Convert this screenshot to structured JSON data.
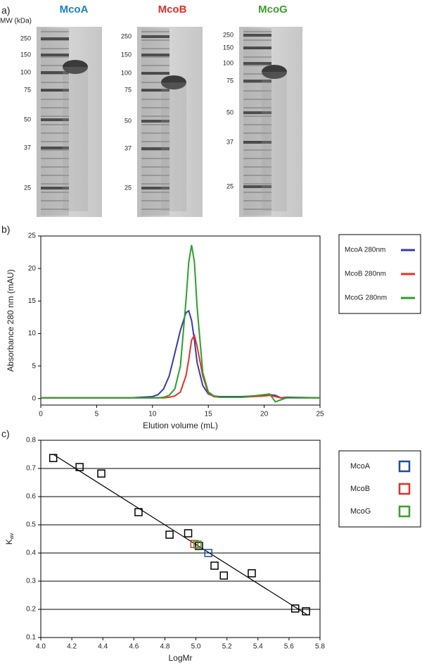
{
  "gels": {
    "label": "a)",
    "mw_axis": "MW (kDa)",
    "panels": [
      {
        "title": "McoA",
        "color": "#1b7fc4",
        "markers": [
          "250",
          "150",
          "100",
          "75",
          "50",
          "37",
          "25"
        ]
      },
      {
        "title": "McoB",
        "color": "#e0302a",
        "markers": [
          "250",
          "150",
          "100",
          "75",
          "50",
          "37",
          "25"
        ]
      },
      {
        "title": "McoG",
        "color": "#3aa02c",
        "markers": [
          "250",
          "150",
          "100",
          "75",
          "50",
          "37",
          "25"
        ]
      }
    ]
  },
  "chart_data": [
    {
      "type": "line",
      "label": "b)",
      "x_label": "Elution volume (mL)",
      "y_label": "Absorbance 280 nm (mAU)",
      "x": [
        0,
        2,
        4,
        6,
        8,
        10,
        10.5,
        11,
        11.5,
        12,
        12.5,
        13,
        13.25,
        13.5,
        13.75,
        14,
        14.5,
        15,
        15.5,
        16,
        18,
        20,
        20.5,
        21,
        21.5,
        22,
        25
      ],
      "series": [
        {
          "name": "McoA 280nm",
          "color": "#3a3aae",
          "values": [
            0.1,
            0.1,
            0.1,
            0.1,
            0.1,
            0.3,
            0.6,
            1.5,
            3.5,
            7,
            10.5,
            13.2,
            13.5,
            12,
            9,
            5.5,
            2,
            0.7,
            0.4,
            0.3,
            0.3,
            0.5,
            0.6,
            0.5,
            0.1,
            0.2,
            0.1
          ]
        },
        {
          "name": "McoB 280nm",
          "color": "#e8302a",
          "values": [
            0.1,
            0.1,
            0.1,
            0.1,
            0.1,
            0.1,
            0.1,
            0.1,
            0.2,
            0.4,
            1,
            3.5,
            6,
            9,
            9.7,
            8,
            3.5,
            0.8,
            0.3,
            0.2,
            0.2,
            0.4,
            0.5,
            0.3,
            0.1,
            0.1,
            0.1
          ]
        },
        {
          "name": "McoG 280nm",
          "color": "#2ca02c",
          "values": [
            0.1,
            0.1,
            0.1,
            0.1,
            0.1,
            0.1,
            0.1,
            0.2,
            0.5,
            1.5,
            5,
            15,
            21,
            23.6,
            21,
            14,
            4,
            1,
            0.4,
            0.2,
            0.2,
            0.6,
            0.7,
            -0.5,
            -0.2,
            0.1,
            0.1
          ]
        }
      ],
      "xlim": [
        0,
        25
      ],
      "xticks": [
        0,
        5,
        10,
        15,
        20,
        25
      ],
      "ylim": [
        -1,
        25
      ],
      "yticks": [
        0,
        5,
        10,
        15,
        20,
        25
      ]
    },
    {
      "type": "scatter",
      "label": "c)",
      "x_label": "LogMr",
      "y_label": {
        "main": "K",
        "sub": "av"
      },
      "points": {
        "color": "#000000",
        "x": [
          4.08,
          4.25,
          4.39,
          4.63,
          4.83,
          4.95,
          5.02,
          5.12,
          5.18,
          5.36,
          5.64,
          5.71
        ],
        "y": [
          0.737,
          0.705,
          0.682,
          0.545,
          0.465,
          0.47,
          0.425,
          0.355,
          0.32,
          0.328,
          0.203,
          0.193
        ]
      },
      "series": [
        {
          "name": "McoA",
          "color": "#1f4e9c",
          "x": [
            5.08
          ],
          "y": [
            0.4
          ]
        },
        {
          "name": "McoB",
          "color": "#e0302a",
          "x": [
            4.99
          ],
          "y": [
            0.432
          ]
        },
        {
          "name": "McoG",
          "color": "#3aa02c",
          "x": [
            5.01
          ],
          "y": [
            0.43
          ]
        }
      ],
      "fit_line": {
        "x": [
          4.08,
          5.72
        ],
        "y": [
          0.75,
          0.18
        ]
      },
      "xlim": [
        4.0,
        5.8
      ],
      "xticks": [
        {
          "value": 4,
          "label": "4.0"
        },
        4.2,
        4.4,
        4.6,
        4.8,
        {
          "value": 5,
          "label": "5.0"
        },
        5.2,
        5.4,
        5.6,
        5.8
      ],
      "ylim": [
        0.1,
        0.8
      ],
      "yticks": [
        0.1,
        0.2,
        0.3,
        0.4,
        0.5,
        0.6,
        0.7,
        0.8
      ],
      "grid": true
    }
  ]
}
